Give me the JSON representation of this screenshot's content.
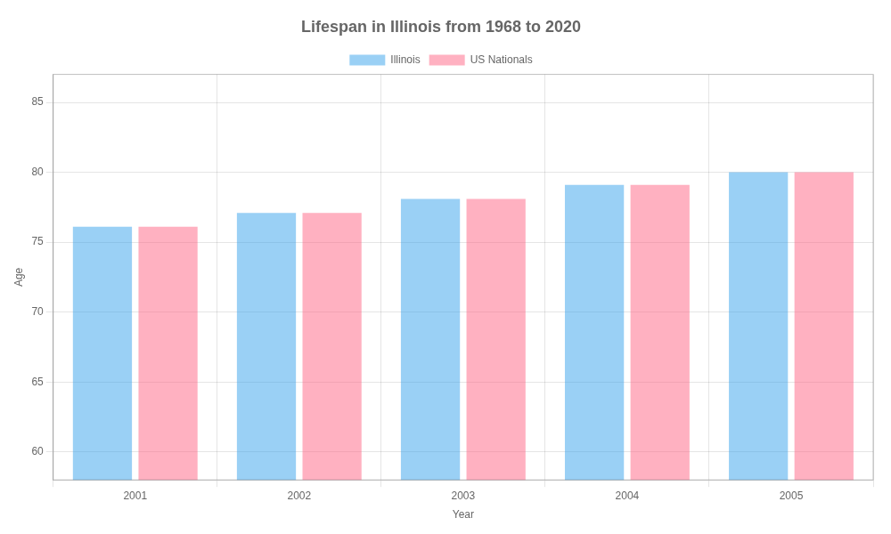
{
  "chart_data": {
    "type": "bar",
    "title": "Lifespan in Illinois from 1968 to 2020",
    "xlabel": "Year",
    "ylabel": "Age",
    "categories": [
      "2001",
      "2002",
      "2003",
      "2004",
      "2005"
    ],
    "series": [
      {
        "name": "Illinois",
        "values": [
          76.1,
          77.1,
          78.1,
          79.1,
          80.0
        ]
      },
      {
        "name": "US Nationals",
        "values": [
          76.1,
          77.1,
          78.1,
          79.1,
          80.0
        ]
      }
    ],
    "ylim": [
      58,
      87
    ],
    "yticks": [
      60,
      65,
      70,
      75,
      80,
      85
    ],
    "grid": true,
    "legend": "top"
  }
}
